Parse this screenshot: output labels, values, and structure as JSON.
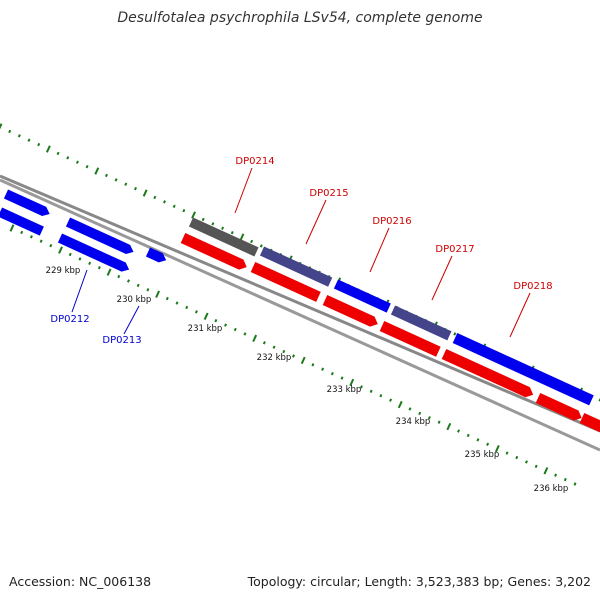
{
  "title": "Desulfotalea psychrophila LSv54, complete genome",
  "footer": {
    "accession": "Accession: NC_006138",
    "summary": "Topology: circular; Length: 3,523,383 bp; Genes: 3,202"
  },
  "colors": {
    "forward_gene": "#0000ee",
    "reverse_gene": "#ee0000",
    "other_gene": "#555555",
    "overlap_gene": "#44448a",
    "backbone": "#888888",
    "tick": "#1a7a1a",
    "label_forward": "#0000cc",
    "label_reverse": "#cc0000"
  },
  "scale_labels": [
    "229 kbp",
    "230 kbp",
    "231 kbp",
    "232 kbp",
    "233 kbp",
    "234 kbp",
    "235 kbp",
    "236 kbp"
  ],
  "genes": [
    {
      "id": "DP0212",
      "strand": "forward"
    },
    {
      "id": "DP0213",
      "strand": "forward"
    },
    {
      "id": "DP0214",
      "strand": "reverse"
    },
    {
      "id": "DP0215",
      "strand": "reverse"
    },
    {
      "id": "DP0216",
      "strand": "reverse"
    },
    {
      "id": "DP0217",
      "strand": "reverse"
    },
    {
      "id": "DP0218",
      "strand": "reverse"
    }
  ]
}
